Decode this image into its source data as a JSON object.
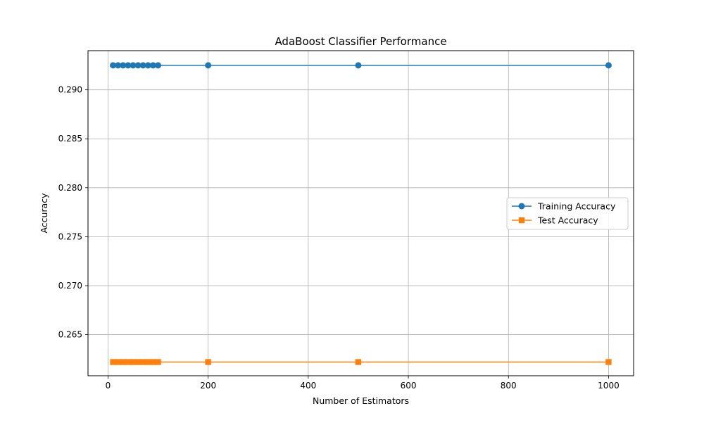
{
  "chart_data": {
    "type": "line",
    "title": "AdaBoost Classifier Performance",
    "xlabel": "Number of Estimators",
    "ylabel": "Accuracy",
    "x": [
      10,
      20,
      30,
      40,
      50,
      60,
      70,
      80,
      90,
      100,
      200,
      500,
      1000
    ],
    "series": [
      {
        "name": "Training Accuracy",
        "color": "#1f77b4",
        "marker": "circle",
        "values": [
          0.2925,
          0.2925,
          0.2925,
          0.2925,
          0.2925,
          0.2925,
          0.2925,
          0.2925,
          0.2925,
          0.2925,
          0.2925,
          0.2925,
          0.2925
        ]
      },
      {
        "name": "Test Accuracy",
        "color": "#ff7f0e",
        "marker": "square",
        "values": [
          0.2622,
          0.2622,
          0.2622,
          0.2622,
          0.2622,
          0.2622,
          0.2622,
          0.2622,
          0.2622,
          0.2622,
          0.2622,
          0.2622,
          0.2622
        ]
      }
    ],
    "xlim": [
      -40,
      1050
    ],
    "ylim": [
      0.2608,
      0.294
    ],
    "xticks": [
      0,
      200,
      400,
      600,
      800,
      1000
    ],
    "xtick_labels": [
      "0",
      "200",
      "400",
      "600",
      "800",
      "1000"
    ],
    "yticks": [
      0.265,
      0.27,
      0.275,
      0.28,
      0.285,
      0.29
    ],
    "ytick_labels": [
      "0.265",
      "0.270",
      "0.275",
      "0.280",
      "0.285",
      "0.290"
    ],
    "grid": true,
    "legend_position": "center-right"
  }
}
